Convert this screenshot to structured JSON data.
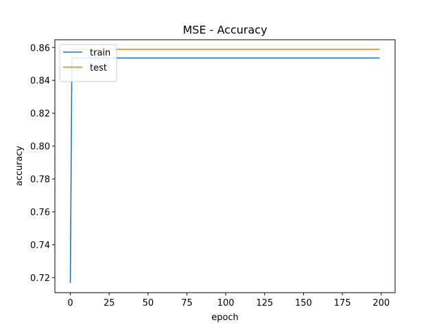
{
  "chart_data": {
    "type": "line",
    "title": "MSE - Accuracy",
    "xlabel": "epoch",
    "ylabel": "accuracy",
    "xlim": [
      -9.95,
      208.95
    ],
    "ylim": [
      0.7108,
      0.8647
    ],
    "xticks": [
      0,
      25,
      50,
      75,
      100,
      125,
      150,
      175,
      200
    ],
    "xtick_labels": [
      "0",
      "25",
      "50",
      "75",
      "100",
      "125",
      "150",
      "175",
      "200"
    ],
    "yticks": [
      0.72,
      0.74,
      0.76,
      0.78,
      0.8,
      0.82,
      0.84,
      0.86
    ],
    "ytick_labels": [
      "0.72",
      "0.74",
      "0.76",
      "0.78",
      "0.80",
      "0.82",
      "0.84",
      "0.86"
    ],
    "grid": false,
    "legend_position": "upper-left",
    "series": [
      {
        "name": "train",
        "color": "#1f77b4",
        "x": [
          0,
          1,
          199
        ],
        "y": [
          0.7167,
          0.8536,
          0.8536
        ]
      },
      {
        "name": "test",
        "color": "#ff7f0e",
        "x": [
          0,
          1,
          199
        ],
        "y": [
          0.8589,
          0.8589,
          0.8589
        ]
      }
    ]
  }
}
